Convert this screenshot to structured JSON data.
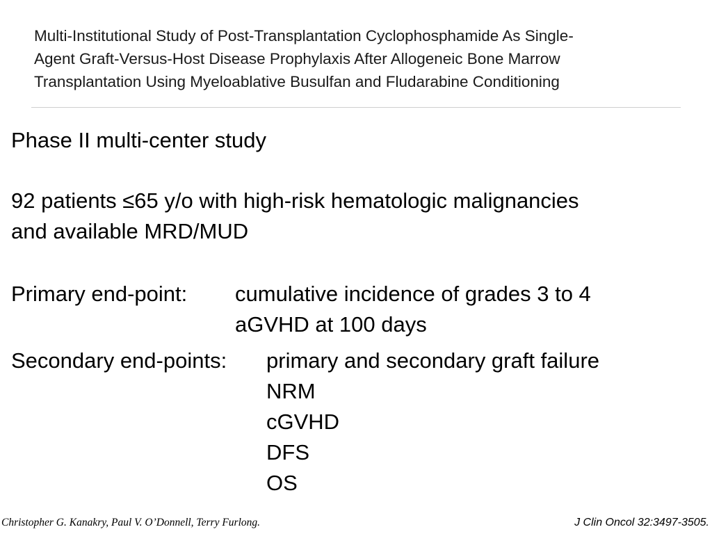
{
  "slide": {
    "title_lines": [
      "Multi-Institutional Study of Post-Transplantation Cyclophosphamide As Single-",
      "Agent Graft-Versus-Host Disease Prophylaxis After Allogeneic Bone Marrow",
      "Transplantation Using Myeloablative Busulfan and Fludarabine Conditioning"
    ],
    "design": "Phase II multi-center study",
    "patients_lines": [
      "92 patients ≤65 y/o with high-risk hematologic malignancies",
      "and available MRD/MUD"
    ],
    "primary_endpoint": {
      "label": "Primary end-point:",
      "lines": [
        "cumulative incidence of grades 3 to 4",
        "aGVHD at 100 days"
      ]
    },
    "secondary_endpoints": {
      "label": "Secondary end-points:",
      "items": [
        "primary and secondary graft failure",
        "NRM",
        "cGVHD",
        "DFS",
        "OS"
      ]
    },
    "authors": "Christopher G. Kanakry, Paul V. O’Donnell, Terry Furlong.",
    "journal_ref": "J Clin Oncol 32:3497-3505."
  }
}
